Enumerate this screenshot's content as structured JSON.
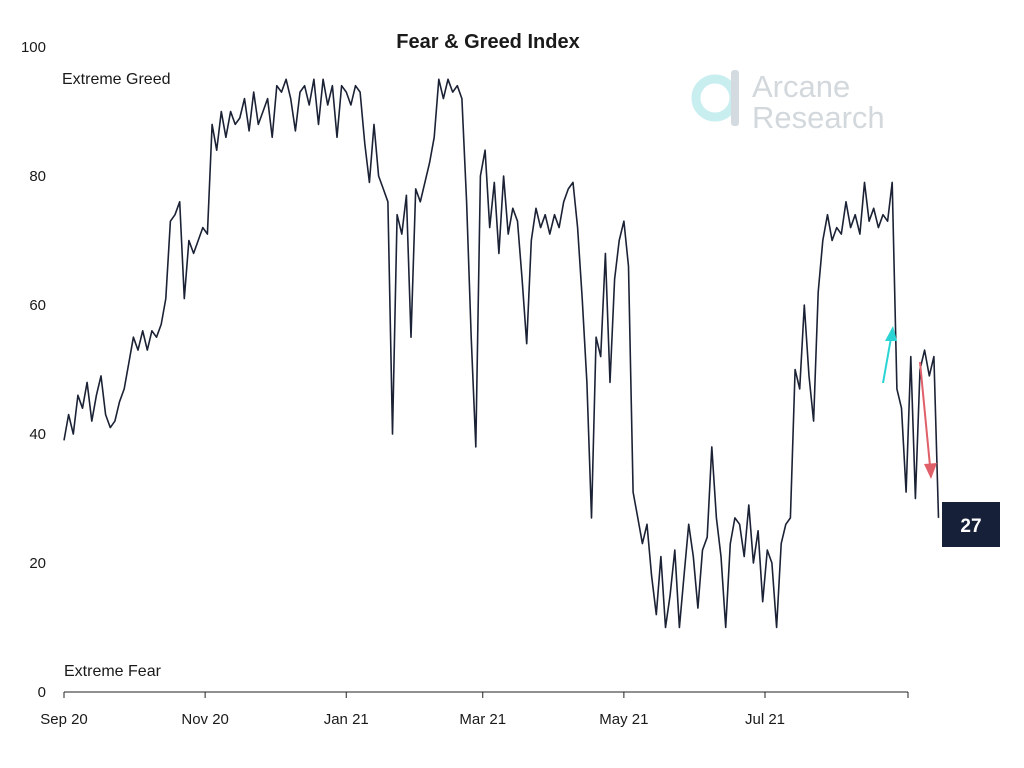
{
  "chart_data": {
    "type": "line",
    "title": "Fear & Greed Index",
    "xlabel": "",
    "ylabel": "",
    "ylim": [
      0,
      100
    ],
    "xlim": [
      "2020-09-01",
      "2021-09-01"
    ],
    "y_ticks": [
      0,
      20,
      40,
      60,
      80,
      100
    ],
    "x_ticks": [
      {
        "label": "Sep 20",
        "date": "2020-09-01"
      },
      {
        "label": "Nov 20",
        "date": "2020-11-01"
      },
      {
        "label": "Jan 21",
        "date": "2021-01-01"
      },
      {
        "label": "Mar 21",
        "date": "2021-03-01"
      },
      {
        "label": "May 21",
        "date": "2021-05-01"
      },
      {
        "label": "Jul 21",
        "date": "2021-07-01"
      }
    ],
    "grid": false,
    "series": [
      {
        "color": "#1b2235",
        "points": [
          [
            "2020-09-01",
            39
          ],
          [
            "2020-09-03",
            43
          ],
          [
            "2020-09-05",
            40
          ],
          [
            "2020-09-07",
            46
          ],
          [
            "2020-09-09",
            44
          ],
          [
            "2020-09-11",
            48
          ],
          [
            "2020-09-13",
            42
          ],
          [
            "2020-09-15",
            46
          ],
          [
            "2020-09-17",
            49
          ],
          [
            "2020-09-19",
            43
          ],
          [
            "2020-09-21",
            41
          ],
          [
            "2020-09-23",
            42
          ],
          [
            "2020-09-25",
            45
          ],
          [
            "2020-09-27",
            47
          ],
          [
            "2020-09-29",
            51
          ],
          [
            "2020-10-01",
            55
          ],
          [
            "2020-10-03",
            53
          ],
          [
            "2020-10-05",
            56
          ],
          [
            "2020-10-07",
            53
          ],
          [
            "2020-10-09",
            56
          ],
          [
            "2020-10-11",
            55
          ],
          [
            "2020-10-13",
            57
          ],
          [
            "2020-10-15",
            61
          ],
          [
            "2020-10-17",
            73
          ],
          [
            "2020-10-19",
            74
          ],
          [
            "2020-10-21",
            76
          ],
          [
            "2020-10-23",
            61
          ],
          [
            "2020-10-25",
            70
          ],
          [
            "2020-10-27",
            68
          ],
          [
            "2020-10-29",
            70
          ],
          [
            "2020-10-31",
            72
          ],
          [
            "2020-11-02",
            71
          ],
          [
            "2020-11-04",
            88
          ],
          [
            "2020-11-06",
            84
          ],
          [
            "2020-11-08",
            90
          ],
          [
            "2020-11-10",
            86
          ],
          [
            "2020-11-12",
            90
          ],
          [
            "2020-11-14",
            88
          ],
          [
            "2020-11-16",
            89
          ],
          [
            "2020-11-18",
            92
          ],
          [
            "2020-11-20",
            87
          ],
          [
            "2020-11-22",
            93
          ],
          [
            "2020-11-24",
            88
          ],
          [
            "2020-11-26",
            90
          ],
          [
            "2020-11-28",
            92
          ],
          [
            "2020-11-30",
            86
          ],
          [
            "2020-12-02",
            94
          ],
          [
            "2020-12-04",
            93
          ],
          [
            "2020-12-06",
            95
          ],
          [
            "2020-12-08",
            92
          ],
          [
            "2020-12-10",
            87
          ],
          [
            "2020-12-12",
            93
          ],
          [
            "2020-12-14",
            94
          ],
          [
            "2020-12-16",
            91
          ],
          [
            "2020-12-18",
            95
          ],
          [
            "2020-12-20",
            88
          ],
          [
            "2020-12-22",
            95
          ],
          [
            "2020-12-24",
            91
          ],
          [
            "2020-12-26",
            94
          ],
          [
            "2020-12-28",
            86
          ],
          [
            "2020-12-30",
            94
          ],
          [
            "2021-01-01",
            93
          ],
          [
            "2021-01-03",
            91
          ],
          [
            "2021-01-05",
            94
          ],
          [
            "2021-01-07",
            93
          ],
          [
            "2021-01-09",
            85
          ],
          [
            "2021-01-11",
            79
          ],
          [
            "2021-01-13",
            88
          ],
          [
            "2021-01-15",
            80
          ],
          [
            "2021-01-17",
            78
          ],
          [
            "2021-01-19",
            76
          ],
          [
            "2021-01-21",
            40
          ],
          [
            "2021-01-23",
            74
          ],
          [
            "2021-01-25",
            71
          ],
          [
            "2021-01-27",
            77
          ],
          [
            "2021-01-29",
            55
          ],
          [
            "2021-01-31",
            78
          ],
          [
            "2021-02-02",
            76
          ],
          [
            "2021-02-04",
            79
          ],
          [
            "2021-02-06",
            82
          ],
          [
            "2021-02-08",
            86
          ],
          [
            "2021-02-10",
            95
          ],
          [
            "2021-02-12",
            92
          ],
          [
            "2021-02-14",
            95
          ],
          [
            "2021-02-16",
            93
          ],
          [
            "2021-02-18",
            94
          ],
          [
            "2021-02-20",
            92
          ],
          [
            "2021-02-22",
            76
          ],
          [
            "2021-02-24",
            55
          ],
          [
            "2021-02-26",
            38
          ],
          [
            "2021-02-28",
            80
          ],
          [
            "2021-03-02",
            84
          ],
          [
            "2021-03-04",
            72
          ],
          [
            "2021-03-06",
            79
          ],
          [
            "2021-03-08",
            68
          ],
          [
            "2021-03-10",
            80
          ],
          [
            "2021-03-12",
            71
          ],
          [
            "2021-03-14",
            75
          ],
          [
            "2021-03-16",
            73
          ],
          [
            "2021-03-18",
            64
          ],
          [
            "2021-03-20",
            54
          ],
          [
            "2021-03-22",
            70
          ],
          [
            "2021-03-24",
            75
          ],
          [
            "2021-03-26",
            72
          ],
          [
            "2021-03-28",
            74
          ],
          [
            "2021-03-30",
            71
          ],
          [
            "2021-04-01",
            74
          ],
          [
            "2021-04-03",
            72
          ],
          [
            "2021-04-05",
            76
          ],
          [
            "2021-04-07",
            78
          ],
          [
            "2021-04-09",
            79
          ],
          [
            "2021-04-11",
            72
          ],
          [
            "2021-04-13",
            61
          ],
          [
            "2021-04-15",
            48
          ],
          [
            "2021-04-17",
            27
          ],
          [
            "2021-04-19",
            55
          ],
          [
            "2021-04-21",
            52
          ],
          [
            "2021-04-23",
            68
          ],
          [
            "2021-04-25",
            48
          ],
          [
            "2021-04-27",
            64
          ],
          [
            "2021-04-29",
            70
          ],
          [
            "2021-05-01",
            73
          ],
          [
            "2021-05-03",
            66
          ],
          [
            "2021-05-05",
            31
          ],
          [
            "2021-05-07",
            27
          ],
          [
            "2021-05-09",
            23
          ],
          [
            "2021-05-11",
            26
          ],
          [
            "2021-05-13",
            18
          ],
          [
            "2021-05-15",
            12
          ],
          [
            "2021-05-17",
            21
          ],
          [
            "2021-05-19",
            10
          ],
          [
            "2021-05-21",
            15
          ],
          [
            "2021-05-23",
            22
          ],
          [
            "2021-05-25",
            10
          ],
          [
            "2021-05-27",
            18
          ],
          [
            "2021-05-29",
            26
          ],
          [
            "2021-05-31",
            21
          ],
          [
            "2021-06-02",
            13
          ],
          [
            "2021-06-04",
            22
          ],
          [
            "2021-06-06",
            24
          ],
          [
            "2021-06-08",
            38
          ],
          [
            "2021-06-10",
            27
          ],
          [
            "2021-06-12",
            21
          ],
          [
            "2021-06-14",
            10
          ],
          [
            "2021-06-16",
            23
          ],
          [
            "2021-06-18",
            27
          ],
          [
            "2021-06-20",
            26
          ],
          [
            "2021-06-22",
            21
          ],
          [
            "2021-06-24",
            29
          ],
          [
            "2021-06-26",
            20
          ],
          [
            "2021-06-28",
            25
          ],
          [
            "2021-06-30",
            14
          ],
          [
            "2021-07-02",
            22
          ],
          [
            "2021-07-04",
            20
          ],
          [
            "2021-07-06",
            10
          ],
          [
            "2021-07-08",
            23
          ],
          [
            "2021-07-10",
            26
          ],
          [
            "2021-07-12",
            27
          ],
          [
            "2021-07-14",
            50
          ],
          [
            "2021-07-16",
            47
          ],
          [
            "2021-07-18",
            60
          ],
          [
            "2021-07-20",
            49
          ],
          [
            "2021-07-22",
            42
          ],
          [
            "2021-07-24",
            62
          ],
          [
            "2021-07-26",
            70
          ],
          [
            "2021-07-28",
            74
          ],
          [
            "2021-07-30",
            70
          ],
          [
            "2021-08-01",
            72
          ],
          [
            "2021-08-03",
            71
          ],
          [
            "2021-08-05",
            76
          ],
          [
            "2021-08-07",
            72
          ],
          [
            "2021-08-09",
            74
          ],
          [
            "2021-08-11",
            71
          ],
          [
            "2021-08-13",
            79
          ],
          [
            "2021-08-15",
            73
          ],
          [
            "2021-08-17",
            75
          ],
          [
            "2021-08-19",
            72
          ],
          [
            "2021-08-21",
            74
          ],
          [
            "2021-08-23",
            73
          ],
          [
            "2021-08-25",
            79
          ],
          [
            "2021-08-27",
            47
          ],
          [
            "2021-08-29",
            44
          ],
          [
            "2021-08-31",
            31
          ],
          [
            "2021-09-02",
            52
          ],
          [
            "2021-09-04",
            30
          ],
          [
            "2021-09-06",
            50
          ],
          [
            "2021-09-08",
            53
          ],
          [
            "2021-09-10",
            49
          ],
          [
            "2021-09-12",
            52
          ],
          [
            "2021-09-14",
            27
          ]
        ]
      }
    ],
    "annotations": {
      "extreme_greed": "Extreme Greed",
      "extreme_fear": "Extreme Fear"
    },
    "arrows": [
      {
        "direction": "up",
        "color": "#2ad4d4"
      },
      {
        "direction": "down",
        "color": "#e0606a"
      }
    ],
    "latest_value_badge": "27"
  },
  "watermark": {
    "line1": "Arcane",
    "line2": "Research",
    "icon": "arcane-logo-icon"
  },
  "colors": {
    "line": "#1b2235",
    "badge_bg": "#162038",
    "arrow_up": "#2ad4d4",
    "arrow_down": "#e0606a",
    "logo": "#cfd6dc",
    "logo_accent": "#c9eef0"
  }
}
